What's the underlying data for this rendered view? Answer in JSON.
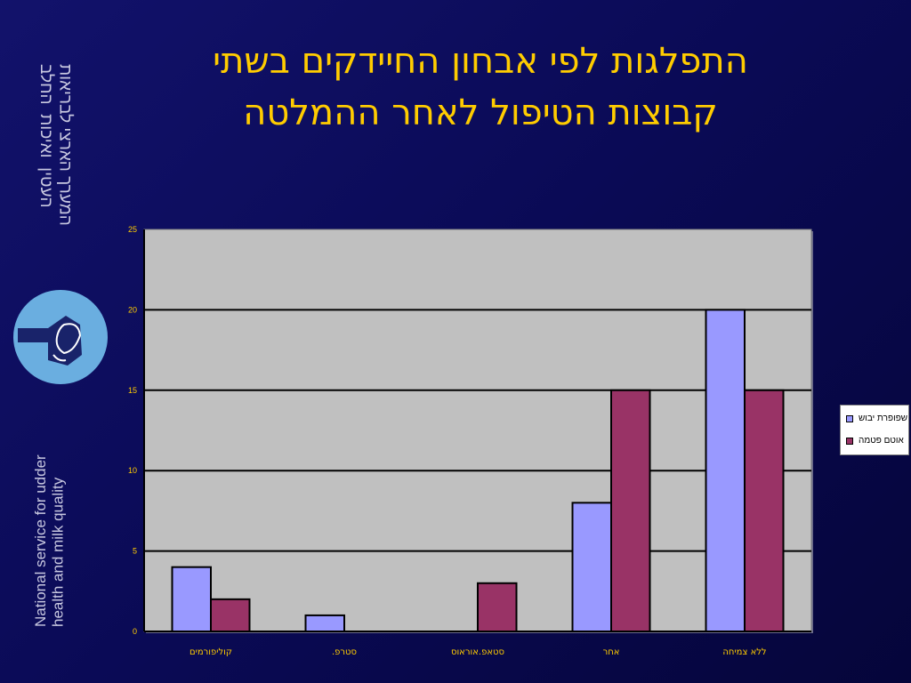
{
  "sidebar": {
    "hebrew_text": "המערך הארצי לבריאות\nהעטין  ואיכות  החלב",
    "english_text": "National service for udder\nhealth and milk quality"
  },
  "colors": {
    "series1": "#9999ff",
    "series2": "#993366",
    "title": "#ffcc00",
    "plot_bg": "#c0c0c0",
    "tick_label": "#ffcc00"
  },
  "chart_data": {
    "type": "bar",
    "title": "התפלגות לפי אבחון החיידקים בשתי קבוצות הטיפול לאחר ההמלטה",
    "title_lines": [
      "התפלגות לפי אבחון החיידקים בשתי",
      "קבוצות הטיפול לאחר ההמלטה"
    ],
    "categories": [
      "קוליפורמים",
      "סטרפ.",
      "סטאפ.אוראוס",
      "אחר",
      "ללא צמיחה"
    ],
    "series": [
      {
        "name": "שפופרת יבוש",
        "values": [
          4,
          1,
          0,
          8,
          20
        ]
      },
      {
        "name": "אוטם פטמה",
        "values": [
          2,
          0,
          3,
          15,
          15
        ]
      }
    ],
    "ylim": [
      0,
      25
    ],
    "yticks": [
      0,
      5,
      10,
      15,
      20,
      25
    ],
    "grid": true,
    "legend": "right"
  }
}
